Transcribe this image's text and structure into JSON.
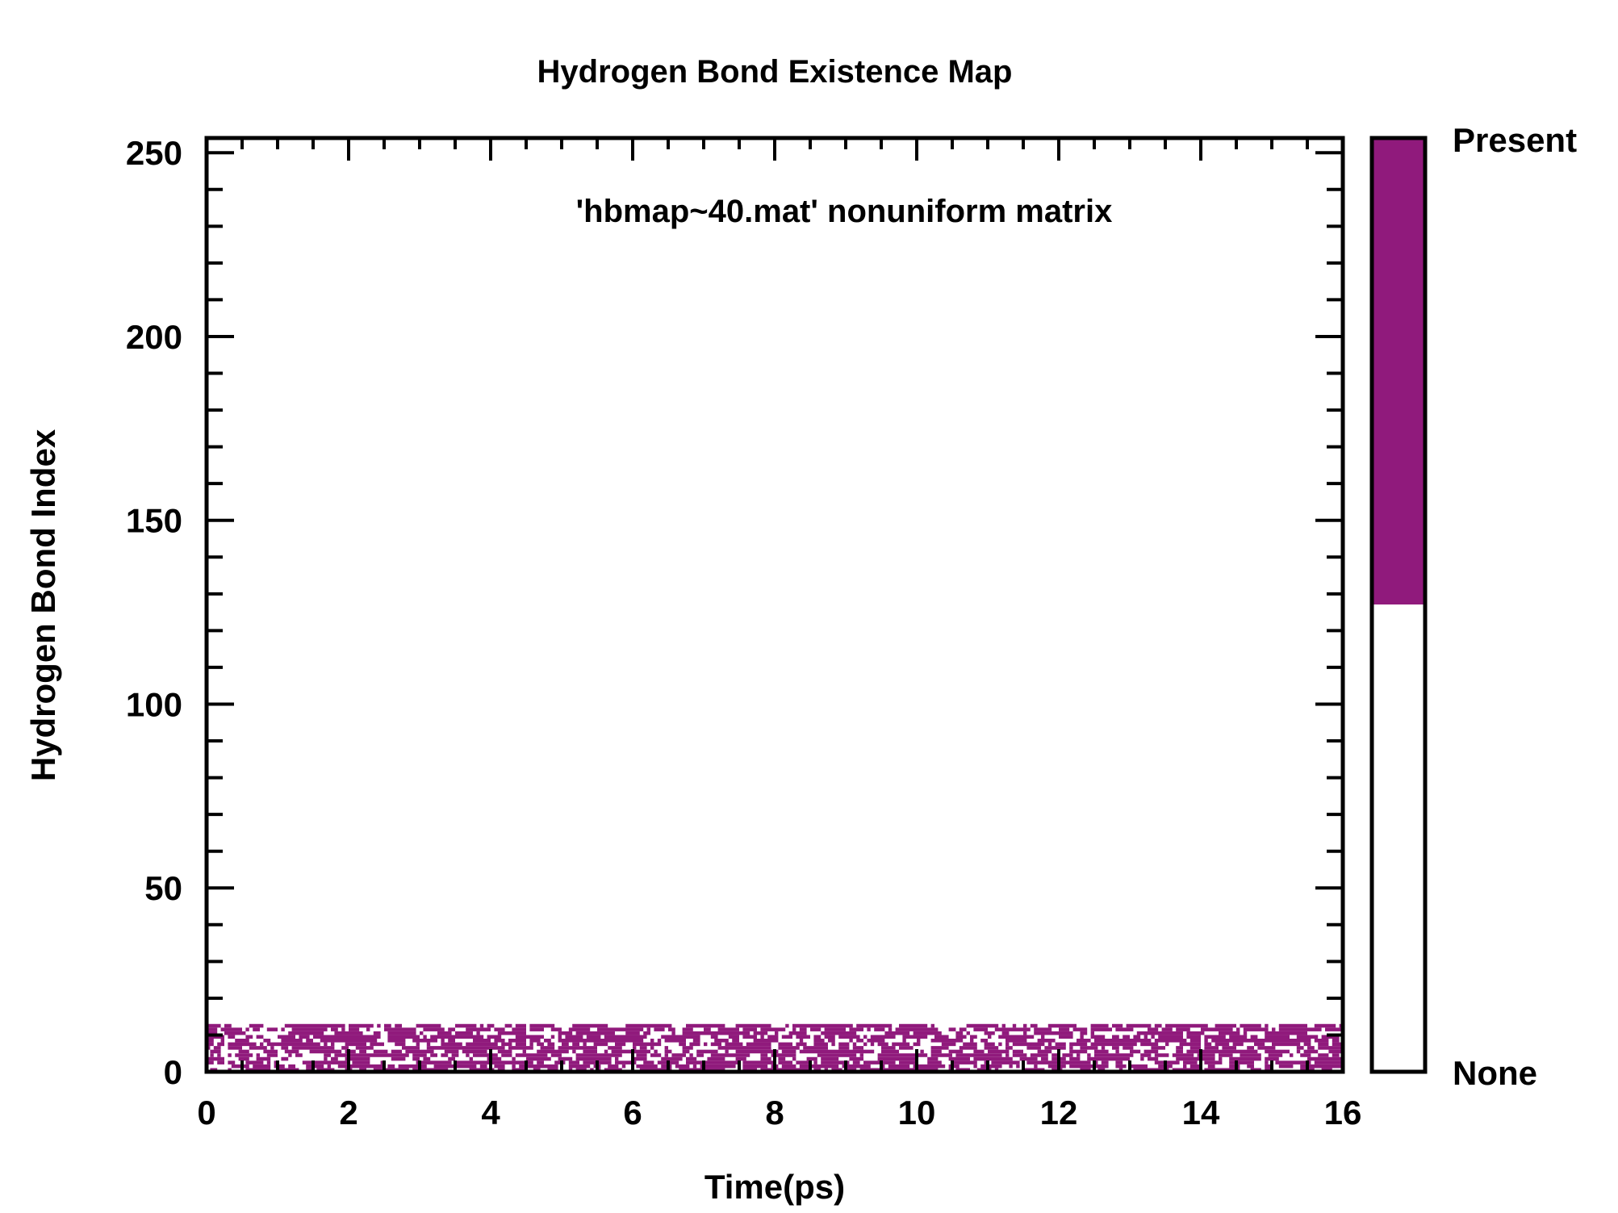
{
  "chart_data": {
    "type": "heatmap",
    "title": "Hydrogen Bond Existence Map",
    "subtitle": "'hbmap~40.mat' nonuniform matrix",
    "xlabel": "Time(ps)",
    "ylabel": "Hydrogen Bond Index",
    "xlim": [
      0,
      16
    ],
    "ylim": [
      0,
      254
    ],
    "x_ticks": [
      0,
      2,
      4,
      6,
      8,
      10,
      12,
      14,
      16
    ],
    "y_ticks": [
      0,
      50,
      100,
      150,
      200,
      250
    ],
    "x_tick_labels": [
      "0",
      "2",
      "4",
      "6",
      "8",
      "10",
      "12",
      "14",
      "16"
    ],
    "y_tick_labels": [
      "0",
      "50",
      "100",
      "150",
      "200",
      "250"
    ],
    "legend": {
      "position": "right",
      "entries": [
        {
          "label": "Present",
          "color": "#901a7c"
        },
        {
          "label": "None",
          "color": "#ffffff"
        }
      ]
    },
    "present_color": "#901a7c",
    "none_color": "#ffffff",
    "bond_rows": 13,
    "bond_occupancy": [
      0.62,
      0.48,
      0.55,
      0.71,
      0.44,
      0.58,
      0.66,
      0.39,
      0.6,
      0.52,
      0.74,
      0.47,
      0.57
    ]
  }
}
